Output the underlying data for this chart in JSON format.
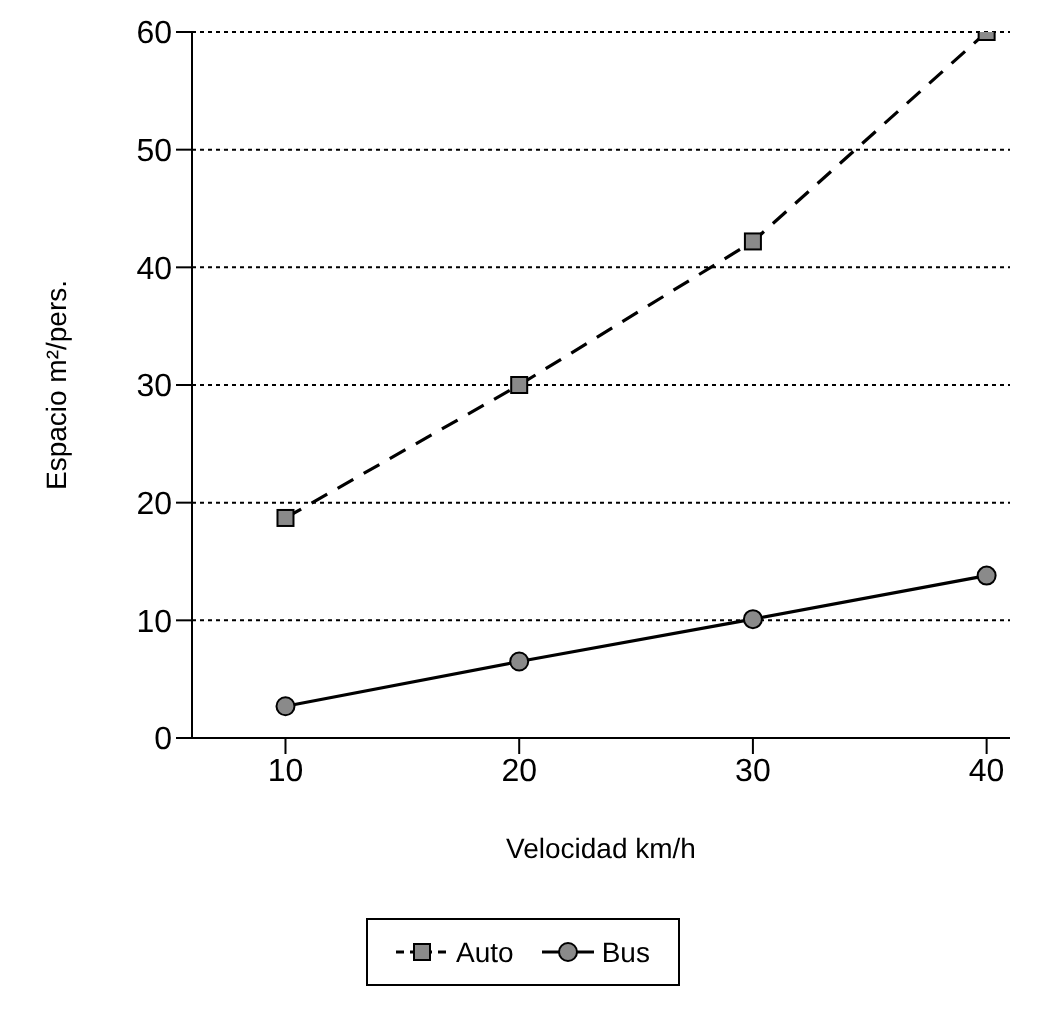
{
  "chart_data": {
    "type": "line",
    "xlabel": "Velocidad km/h",
    "ylabel": "Espacio m²/pers.",
    "x": [
      10,
      20,
      30,
      40
    ],
    "series": [
      {
        "name": "Auto",
        "color": "#000000",
        "values": [
          18.7,
          30,
          42.2,
          60
        ],
        "marker": "square",
        "line_style": "dashed"
      },
      {
        "name": "Bus",
        "color": "#000000",
        "values": [
          2.7,
          6.5,
          10.1,
          13.8
        ],
        "marker": "circle",
        "line_style": "solid"
      }
    ],
    "xlim": [
      6,
      41
    ],
    "xticks": [
      10,
      20,
      30,
      40
    ],
    "ylim": [
      0,
      60
    ],
    "yticks": [
      0,
      10,
      20,
      30,
      40,
      50,
      60
    ],
    "grid": "y",
    "legend": "bottom"
  }
}
